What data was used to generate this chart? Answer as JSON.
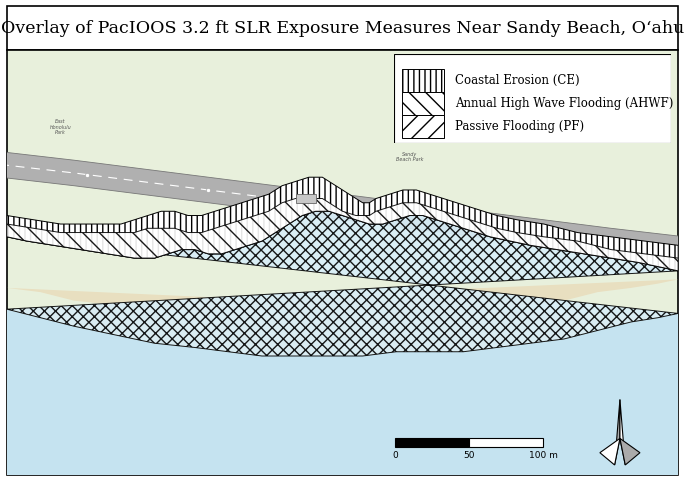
{
  "title": "Overlay of PacIOOS 3.2 ft SLR Exposure Measures Near Sandy Beach, Oʻahu",
  "legend_labels": [
    "Coastal Erosion (CE)",
    "Annual High Wave Flooding (AHWF)",
    "Passive Flooding (PF)"
  ],
  "legend_hatches": [
    "|||",
    "\\\\",
    "//"
  ],
  "bg_land_color": "#e8f0dc",
  "ocean_color": "#c5e3f0",
  "sand_color": "#e8dfc0",
  "road_color": "#b0b0b0",
  "road_edge_color": "#888888",
  "ce_facecolor": "white",
  "ahwf_facecolor": "white",
  "pf_facecolor": "#d8eef8",
  "title_fontsize": 12.5,
  "legend_fontsize": 8.5
}
